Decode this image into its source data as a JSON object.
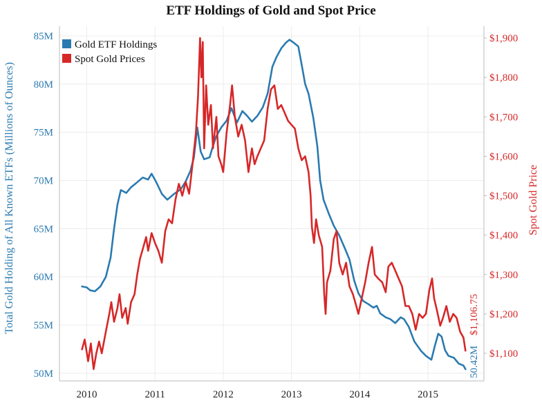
{
  "title": "ETF Holdings of Gold and Spot Price",
  "colors": {
    "etf": "#2a7ab0",
    "gold": "#d62728",
    "grid": "#ececec",
    "axis": "#bbbbbb"
  },
  "chart_data": {
    "type": "line",
    "title": "ETF Holdings of Gold and Spot Price",
    "y_left": {
      "label": "Total Gold Holding of All Known ETFs (Millions of Ounces)",
      "range": [
        49.2,
        86
      ],
      "ticks": [
        50,
        55,
        60,
        65,
        70,
        75,
        80,
        85
      ],
      "tick_labels": [
        "50M",
        "55M",
        "60M",
        "65M",
        "70M",
        "75M",
        "80M",
        "85M"
      ]
    },
    "y_right": {
      "label": "Spot Gold Price",
      "range": [
        1030,
        1930
      ],
      "ticks": [
        1100,
        1200,
        1300,
        1400,
        1500,
        1600,
        1700,
        1800,
        1900
      ],
      "tick_labels": [
        "$1,100",
        "$1,200",
        "$1,300",
        "$1,400",
        "$1,500",
        "$1,600",
        "$1,700",
        "$1,800",
        "$1,900"
      ]
    },
    "x_axis": {
      "range": [
        2009.6,
        2015.82
      ],
      "ticks": [
        2010,
        2011,
        2012,
        2013,
        2014,
        2015
      ],
      "tick_labels": [
        "2010",
        "2011",
        "2012",
        "2013",
        "2014",
        "2015"
      ]
    },
    "grid": true,
    "legend": "top-left",
    "series": [
      {
        "name": "Gold ETF Holdings",
        "axis": "left",
        "color": "#2a7ab0",
        "points": [
          [
            2009.93,
            59.0
          ],
          [
            2010.0,
            58.9
          ],
          [
            2010.05,
            58.6
          ],
          [
            2010.12,
            58.5
          ],
          [
            2010.2,
            59.0
          ],
          [
            2010.28,
            60.0
          ],
          [
            2010.35,
            62.0
          ],
          [
            2010.4,
            65.0
          ],
          [
            2010.45,
            67.5
          ],
          [
            2010.5,
            69.0
          ],
          [
            2010.58,
            68.7
          ],
          [
            2010.65,
            69.3
          ],
          [
            2010.72,
            69.7
          ],
          [
            2010.82,
            70.3
          ],
          [
            2010.9,
            70.1
          ],
          [
            2010.95,
            70.7
          ],
          [
            2011.02,
            69.8
          ],
          [
            2011.1,
            68.6
          ],
          [
            2011.18,
            68.0
          ],
          [
            2011.28,
            68.6
          ],
          [
            2011.38,
            69.1
          ],
          [
            2011.45,
            69.9
          ],
          [
            2011.52,
            71.0
          ],
          [
            2011.57,
            72.4
          ],
          [
            2011.62,
            75.5
          ],
          [
            2011.67,
            73.0
          ],
          [
            2011.72,
            72.2
          ],
          [
            2011.8,
            72.4
          ],
          [
            2011.85,
            73.6
          ],
          [
            2011.9,
            74.6
          ],
          [
            2011.97,
            75.5
          ],
          [
            2012.05,
            76.2
          ],
          [
            2012.12,
            77.5
          ],
          [
            2012.2,
            76.0
          ],
          [
            2012.28,
            77.2
          ],
          [
            2012.35,
            76.7
          ],
          [
            2012.42,
            76.1
          ],
          [
            2012.5,
            76.7
          ],
          [
            2012.58,
            77.6
          ],
          [
            2012.65,
            79.0
          ],
          [
            2012.72,
            81.8
          ],
          [
            2012.78,
            82.8
          ],
          [
            2012.85,
            83.7
          ],
          [
            2012.92,
            84.3
          ],
          [
            2012.97,
            84.6
          ],
          [
            2013.03,
            84.3
          ],
          [
            2013.1,
            83.9
          ],
          [
            2013.15,
            82.0
          ],
          [
            2013.2,
            80.0
          ],
          [
            2013.25,
            79.0
          ],
          [
            2013.32,
            76.5
          ],
          [
            2013.38,
            73.5
          ],
          [
            2013.42,
            70.0
          ],
          [
            2013.47,
            68.0
          ],
          [
            2013.55,
            66.5
          ],
          [
            2013.62,
            65.3
          ],
          [
            2013.7,
            64.3
          ],
          [
            2013.78,
            63.0
          ],
          [
            2013.85,
            61.8
          ],
          [
            2013.92,
            59.6
          ],
          [
            2013.98,
            58.3
          ],
          [
            2014.05,
            57.5
          ],
          [
            2014.12,
            57.2
          ],
          [
            2014.2,
            56.8
          ],
          [
            2014.25,
            57.0
          ],
          [
            2014.3,
            56.2
          ],
          [
            2014.38,
            55.8
          ],
          [
            2014.45,
            55.6
          ],
          [
            2014.52,
            55.2
          ],
          [
            2014.6,
            55.8
          ],
          [
            2014.65,
            55.6
          ],
          [
            2014.72,
            54.8
          ],
          [
            2014.8,
            53.3
          ],
          [
            2014.9,
            52.3
          ],
          [
            2014.97,
            51.8
          ],
          [
            2015.05,
            51.4
          ],
          [
            2015.1,
            52.8
          ],
          [
            2015.15,
            54.1
          ],
          [
            2015.2,
            53.8
          ],
          [
            2015.25,
            52.4
          ],
          [
            2015.3,
            51.8
          ],
          [
            2015.38,
            51.6
          ],
          [
            2015.45,
            51.0
          ],
          [
            2015.52,
            50.8
          ],
          [
            2015.55,
            50.42
          ]
        ]
      },
      {
        "name": "Spot Gold Prices",
        "axis": "right",
        "color": "#d62728",
        "points": [
          [
            2009.93,
            1110
          ],
          [
            2009.97,
            1135
          ],
          [
            2010.02,
            1080
          ],
          [
            2010.06,
            1125
          ],
          [
            2010.1,
            1060
          ],
          [
            2010.14,
            1100
          ],
          [
            2010.18,
            1130
          ],
          [
            2010.22,
            1100
          ],
          [
            2010.28,
            1155
          ],
          [
            2010.33,
            1200
          ],
          [
            2010.36,
            1230
          ],
          [
            2010.4,
            1180
          ],
          [
            2010.45,
            1215
          ],
          [
            2010.48,
            1250
          ],
          [
            2010.52,
            1190
          ],
          [
            2010.57,
            1215
          ],
          [
            2010.6,
            1175
          ],
          [
            2010.65,
            1230
          ],
          [
            2010.7,
            1250
          ],
          [
            2010.74,
            1300
          ],
          [
            2010.78,
            1340
          ],
          [
            2010.83,
            1370
          ],
          [
            2010.87,
            1395
          ],
          [
            2010.9,
            1360
          ],
          [
            2010.95,
            1405
          ],
          [
            2011.0,
            1380
          ],
          [
            2011.05,
            1360
          ],
          [
            2011.1,
            1330
          ],
          [
            2011.15,
            1410
          ],
          [
            2011.2,
            1440
          ],
          [
            2011.25,
            1430
          ],
          [
            2011.3,
            1490
          ],
          [
            2011.35,
            1530
          ],
          [
            2011.4,
            1500
          ],
          [
            2011.45,
            1535
          ],
          [
            2011.5,
            1505
          ],
          [
            2011.55,
            1580
          ],
          [
            2011.6,
            1660
          ],
          [
            2011.63,
            1750
          ],
          [
            2011.66,
            1900
          ],
          [
            2011.68,
            1800
          ],
          [
            2011.7,
            1890
          ],
          [
            2011.72,
            1620
          ],
          [
            2011.75,
            1780
          ],
          [
            2011.78,
            1680
          ],
          [
            2011.82,
            1730
          ],
          [
            2011.85,
            1620
          ],
          [
            2011.9,
            1700
          ],
          [
            2011.93,
            1600
          ],
          [
            2011.97,
            1580
          ],
          [
            2012.0,
            1560
          ],
          [
            2012.05,
            1660
          ],
          [
            2012.1,
            1730
          ],
          [
            2012.13,
            1780
          ],
          [
            2012.17,
            1700
          ],
          [
            2012.22,
            1650
          ],
          [
            2012.27,
            1680
          ],
          [
            2012.32,
            1640
          ],
          [
            2012.37,
            1560
          ],
          [
            2012.42,
            1620
          ],
          [
            2012.46,
            1580
          ],
          [
            2012.5,
            1600
          ],
          [
            2012.55,
            1620
          ],
          [
            2012.6,
            1640
          ],
          [
            2012.65,
            1720
          ],
          [
            2012.7,
            1770
          ],
          [
            2012.75,
            1780
          ],
          [
            2012.8,
            1720
          ],
          [
            2012.85,
            1730
          ],
          [
            2012.9,
            1710
          ],
          [
            2012.95,
            1690
          ],
          [
            2013.0,
            1680
          ],
          [
            2013.05,
            1670
          ],
          [
            2013.1,
            1620
          ],
          [
            2013.15,
            1590
          ],
          [
            2013.2,
            1600
          ],
          [
            2013.25,
            1560
          ],
          [
            2013.28,
            1500
          ],
          [
            2013.3,
            1420
          ],
          [
            2013.33,
            1380
          ],
          [
            2013.36,
            1440
          ],
          [
            2013.4,
            1400
          ],
          [
            2013.45,
            1370
          ],
          [
            2013.48,
            1250
          ],
          [
            2013.5,
            1200
          ],
          [
            2013.52,
            1280
          ],
          [
            2013.57,
            1310
          ],
          [
            2013.62,
            1390
          ],
          [
            2013.66,
            1410
          ],
          [
            2013.7,
            1330
          ],
          [
            2013.75,
            1300
          ],
          [
            2013.8,
            1330
          ],
          [
            2013.85,
            1270
          ],
          [
            2013.9,
            1250
          ],
          [
            2013.95,
            1220
          ],
          [
            2013.98,
            1200
          ],
          [
            2014.03,
            1240
          ],
          [
            2014.08,
            1280
          ],
          [
            2014.13,
            1330
          ],
          [
            2014.18,
            1370
          ],
          [
            2014.22,
            1300
          ],
          [
            2014.27,
            1290
          ],
          [
            2014.33,
            1280
          ],
          [
            2014.38,
            1255
          ],
          [
            2014.42,
            1320
          ],
          [
            2014.47,
            1330
          ],
          [
            2014.52,
            1310
          ],
          [
            2014.57,
            1290
          ],
          [
            2014.62,
            1270
          ],
          [
            2014.67,
            1220
          ],
          [
            2014.72,
            1220
          ],
          [
            2014.77,
            1200
          ],
          [
            2014.82,
            1160
          ],
          [
            2014.87,
            1200
          ],
          [
            2014.92,
            1190
          ],
          [
            2014.97,
            1200
          ],
          [
            2015.02,
            1260
          ],
          [
            2015.06,
            1290
          ],
          [
            2015.09,
            1240
          ],
          [
            2015.13,
            1210
          ],
          [
            2015.18,
            1170
          ],
          [
            2015.22,
            1190
          ],
          [
            2015.27,
            1220
          ],
          [
            2015.32,
            1180
          ],
          [
            2015.37,
            1200
          ],
          [
            2015.42,
            1190
          ],
          [
            2015.47,
            1155
          ],
          [
            2015.52,
            1140
          ],
          [
            2015.55,
            1106.75
          ]
        ]
      }
    ],
    "end_labels": {
      "etf": "50.42M",
      "gold": "$1,106.75"
    }
  }
}
